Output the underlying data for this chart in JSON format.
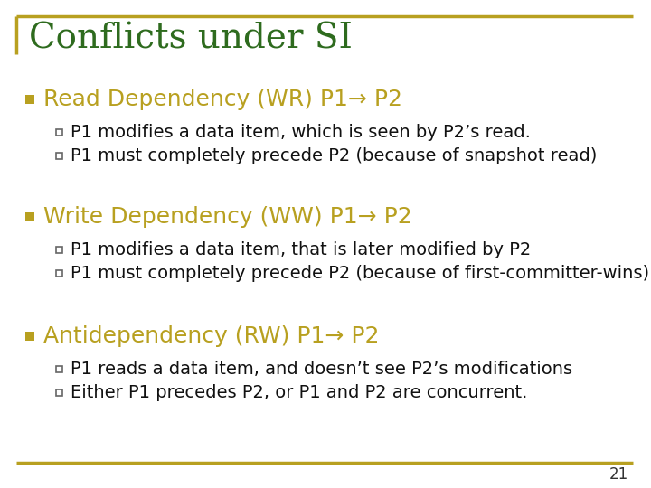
{
  "title": "Conflicts under SI",
  "title_color": "#2E6B1E",
  "title_fontsize": 28,
  "background_color": "#FFFFFF",
  "border_color": "#B8A020",
  "slide_number": "21",
  "bullet_color": "#B8A020",
  "bullet_fontsize": 18,
  "sub_bullet_fontsize": 14,
  "sub_bullet_color": "#111111",
  "bullets": [
    {
      "text": "Read Dependency (WR) P1→ P2",
      "sub": [
        "P1 modifies a data item, which is seen by P2’s read.",
        "P1 must completely precede P2 (because of snapshot read)"
      ]
    },
    {
      "text": "Write Dependency (WW) P1→ P2",
      "sub": [
        "P1 modifies a data item, that is later modified by P2",
        "P1 must completely precede P2 (because of first-committer-wins)"
      ]
    },
    {
      "text": "Antidependency (RW) P1→ P2",
      "sub": [
        "P1 reads a data item, and doesn’t see P2’s modifications",
        "Either P1 precedes P2, or P1 and P2 are concurrent."
      ]
    }
  ]
}
